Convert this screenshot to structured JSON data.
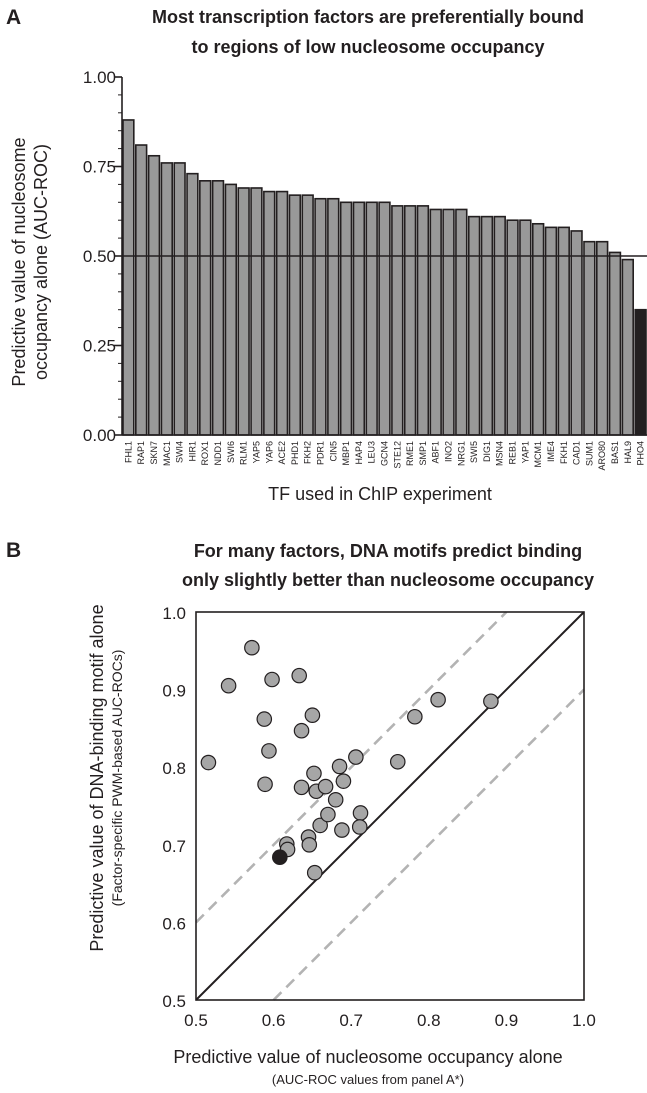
{
  "panel_a": {
    "letter": "A",
    "title_lines": [
      "Most transcription factors are preferentially bound",
      "to regions of low nucleosome occupancy"
    ],
    "ylabel_lines": [
      "Predictive value of nucleosome",
      "occupancy alone (AUC-ROC)"
    ],
    "xlabel": "TF used in ChIP experiment"
  },
  "panel_b": {
    "letter": "B",
    "title_lines": [
      "For many factors, DNA motifs predict binding",
      "only slightly better than nucleosome occupancy"
    ],
    "ylabel_lines": [
      "Predictive value of DNA-binding motif alone",
      "(Factor-specific PWM-based AUC-ROCs)"
    ],
    "xlabel_lines": [
      "Predictive value of nucleosome occupancy alone",
      "(AUC-ROC values from panel A*)"
    ]
  },
  "colors": {
    "bar": "#999999",
    "highlight": "#231f20",
    "point": "#a6a6a6",
    "dashed": "#b3b3b3",
    "line": "#231f20"
  },
  "chart_data": [
    {
      "type": "bar",
      "title": "Most transcription factors are preferentially bound to regions of low nucleosome occupancy",
      "xlabel": "TF used in ChIP experiment",
      "ylabel": "Predictive value of nucleosome occupancy alone (AUC-ROC)",
      "ylim": [
        0,
        1
      ],
      "yticks": [
        0,
        0.25,
        0.5,
        0.75,
        1
      ],
      "ytick_labels": [
        "0.00",
        "0.25",
        "0.50",
        "0.75",
        "1.00"
      ],
      "reference_line": 0.5,
      "categories": [
        "FHL1",
        "RAP1",
        "SKN7",
        "MAC1",
        "SWI4",
        "HIR1",
        "ROX1",
        "NDD1",
        "SWI6",
        "RLM1",
        "YAP5",
        "YAP6",
        "ACE2",
        "PHD1",
        "FKH2",
        "PDR1",
        "CIN5",
        "MBP1",
        "HAP4",
        "LEU3",
        "GCN4",
        "STE12",
        "RME1",
        "SMP1",
        "ABF1",
        "INO2",
        "NRG1",
        "SWI5",
        "DIG1",
        "MSN4",
        "REB1",
        "YAP1",
        "MCM1",
        "IME4",
        "FKH1",
        "CAD1",
        "SUM1",
        "ARO80",
        "BAS1",
        "HAL9",
        "PHO4"
      ],
      "values": [
        0.88,
        0.81,
        0.78,
        0.76,
        0.76,
        0.73,
        0.71,
        0.71,
        0.7,
        0.69,
        0.69,
        0.68,
        0.68,
        0.67,
        0.67,
        0.66,
        0.66,
        0.65,
        0.65,
        0.65,
        0.65,
        0.64,
        0.64,
        0.64,
        0.63,
        0.63,
        0.63,
        0.61,
        0.61,
        0.61,
        0.6,
        0.6,
        0.59,
        0.58,
        0.58,
        0.57,
        0.54,
        0.54,
        0.51,
        0.49,
        0.35
      ],
      "highlight": [
        "PHO4"
      ],
      "grid": false
    },
    {
      "type": "scatter",
      "title": "For many factors, DNA motifs predict binding only slightly better than nucleosome occupancy",
      "xlabel": "Predictive value of nucleosome occupancy alone (AUC-ROC values from panel A*)",
      "ylabel": "Predictive value of DNA-binding motif alone (Factor-specific PWM-based AUC-ROCs)",
      "xlim": [
        0.5,
        1.0
      ],
      "ylim": [
        0.5,
        1.0
      ],
      "ticks": [
        0.5,
        0.6,
        0.7,
        0.8,
        0.9,
        1.0
      ],
      "tick_labels": [
        "0.5",
        "0.6",
        "0.7",
        "0.8",
        "0.9",
        "1.0"
      ],
      "lines": [
        {
          "style": "solid",
          "intercept": 0.0,
          "slope": 1
        },
        {
          "style": "dashed",
          "intercept": 0.1,
          "slope": 1
        },
        {
          "style": "dashed",
          "intercept": -0.1,
          "slope": 1
        }
      ],
      "points": [
        {
          "x": 0.516,
          "y": 0.806
        },
        {
          "x": 0.542,
          "y": 0.905
        },
        {
          "x": 0.572,
          "y": 0.954
        },
        {
          "x": 0.588,
          "y": 0.862
        },
        {
          "x": 0.598,
          "y": 0.913
        },
        {
          "x": 0.594,
          "y": 0.821
        },
        {
          "x": 0.589,
          "y": 0.778
        },
        {
          "x": 0.633,
          "y": 0.918
        },
        {
          "x": 0.636,
          "y": 0.847
        },
        {
          "x": 0.65,
          "y": 0.867
        },
        {
          "x": 0.636,
          "y": 0.774
        },
        {
          "x": 0.652,
          "y": 0.792
        },
        {
          "x": 0.655,
          "y": 0.769
        },
        {
          "x": 0.667,
          "y": 0.775
        },
        {
          "x": 0.68,
          "y": 0.758
        },
        {
          "x": 0.685,
          "y": 0.801
        },
        {
          "x": 0.69,
          "y": 0.782
        },
        {
          "x": 0.706,
          "y": 0.813
        },
        {
          "x": 0.66,
          "y": 0.725
        },
        {
          "x": 0.67,
          "y": 0.739
        },
        {
          "x": 0.645,
          "y": 0.71
        },
        {
          "x": 0.646,
          "y": 0.7
        },
        {
          "x": 0.688,
          "y": 0.719
        },
        {
          "x": 0.712,
          "y": 0.741
        },
        {
          "x": 0.711,
          "y": 0.723
        },
        {
          "x": 0.617,
          "y": 0.701
        },
        {
          "x": 0.618,
          "y": 0.694
        },
        {
          "x": 0.653,
          "y": 0.664
        },
        {
          "x": 0.76,
          "y": 0.807
        },
        {
          "x": 0.782,
          "y": 0.865
        },
        {
          "x": 0.812,
          "y": 0.887
        },
        {
          "x": 0.88,
          "y": 0.885
        },
        {
          "x": 0.608,
          "y": 0.684,
          "highlight": true
        }
      ]
    }
  ]
}
